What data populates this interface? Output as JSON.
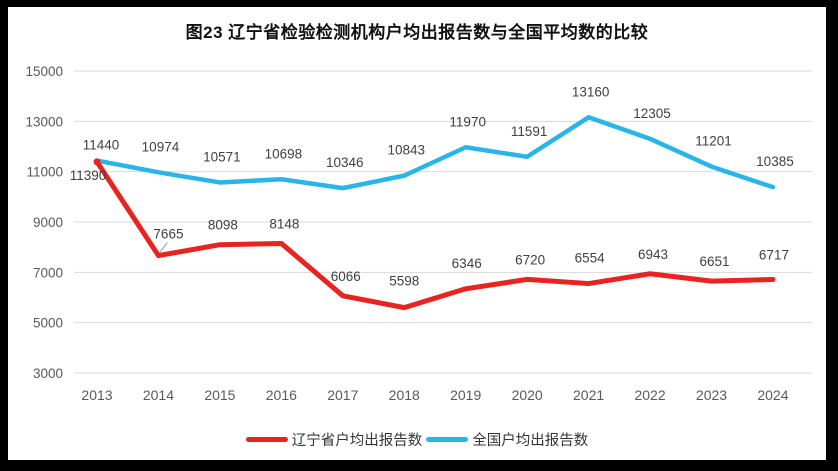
{
  "title": "图23 辽宁省检验检测机构户均出报告数与全国平均数的比较",
  "chart_data": {
    "type": "line",
    "categories": [
      "2013",
      "2014",
      "2015",
      "2016",
      "2017",
      "2018",
      "2019",
      "2020",
      "2021",
      "2022",
      "2023",
      "2024"
    ],
    "series": [
      {
        "name": "辽宁省户均出报告数",
        "color": "#e82320",
        "values": [
          11390,
          7665,
          8098,
          8148,
          6066,
          5598,
          6346,
          6720,
          6554,
          6943,
          6651,
          6717
        ]
      },
      {
        "name": "全国户均出报告数",
        "color": "#29b5e9",
        "values": [
          11440,
          10974,
          10571,
          10698,
          10346,
          10843,
          11970,
          11591,
          13160,
          12305,
          11201,
          10385
        ]
      }
    ],
    "title": "图23 辽宁省检验检测机构户均出报告数与全国平均数的比较",
    "xlabel": "",
    "ylabel": "",
    "ylim": [
      3000,
      15000
    ],
    "yticks": [
      3000,
      5000,
      7000,
      9000,
      11000,
      13000,
      15000
    ],
    "grid": true,
    "data_labels": true,
    "legend_position": "bottom",
    "annotations": [
      "7665 label has leader line to its data point",
      "red marker dot at 2013 point"
    ]
  },
  "colors": {
    "frame": "#000000",
    "background": "#ffffff",
    "gridline": "#d9d9d9",
    "tick_label": "#595959",
    "data_label": "#404040",
    "legend_text": "#333333",
    "leader_line": "#a6a6a6"
  }
}
